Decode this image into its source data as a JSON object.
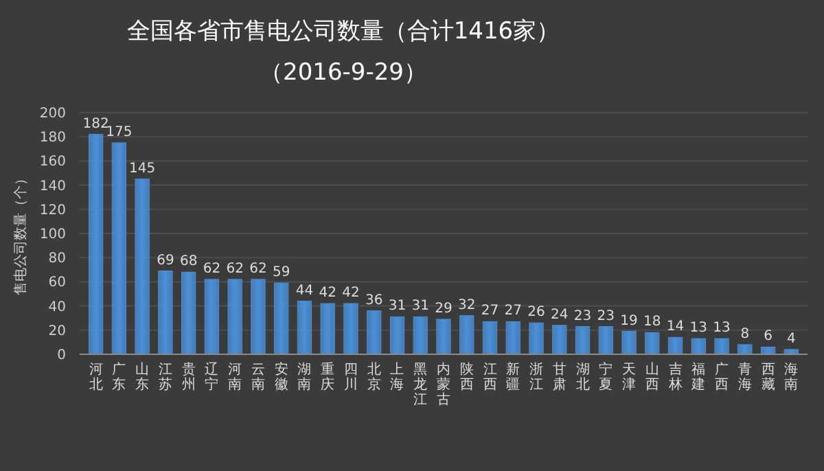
{
  "chart_data": {
    "type": "bar",
    "title": "全国各省市售电公司数量（合计1416家）",
    "subtitle": "（2016-9-29）",
    "ylabel": "售电公司数量（个）",
    "categories": [
      "河北",
      "广东",
      "山东",
      "江苏",
      "贵州",
      "辽宁",
      "河南",
      "云南",
      "安徽",
      "湖南",
      "重庆",
      "四川",
      "北京",
      "上海",
      "黑龙江",
      "内蒙古",
      "陕西",
      "江西",
      "新疆",
      "浙江",
      "甘肃",
      "湖北",
      "宁夏",
      "天津",
      "山西",
      "吉林",
      "福建",
      "广西",
      "青海",
      "西藏",
      "海南"
    ],
    "values": [
      182,
      175,
      145,
      69,
      68,
      62,
      62,
      62,
      59,
      44,
      42,
      42,
      36,
      31,
      31,
      29,
      32,
      27,
      27,
      26,
      24,
      23,
      23,
      19,
      18,
      14,
      13,
      13,
      8,
      6,
      4
    ],
    "color": "#4a90d9",
    "ylim": [
      0,
      200
    ],
    "yticks": [
      0,
      20,
      40,
      60,
      80,
      100,
      120,
      140,
      160,
      180,
      200
    ],
    "grid": "y",
    "data_labels": true
  }
}
